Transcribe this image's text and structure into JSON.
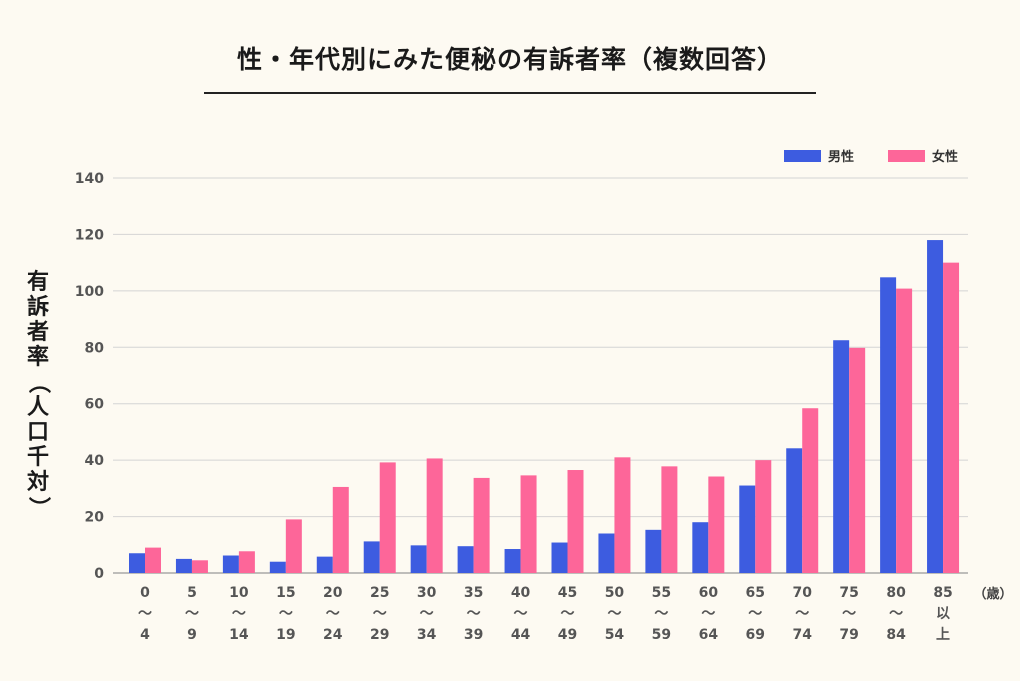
{
  "title": "性・年代別にみた便秘の有訴者率（複数回答）",
  "chart_data": {
    "type": "bar",
    "title": "性・年代別にみた便秘の有訴者率（複数回答）",
    "ylabel": "有訴者率（人口千対）",
    "xunit": "（歳）",
    "ylim": [
      0,
      140
    ],
    "yticks": [
      0,
      20,
      40,
      60,
      80,
      100,
      120,
      140
    ],
    "grid": true,
    "legend_position": "top-right",
    "categories": [
      [
        "0",
        "〜",
        "4"
      ],
      [
        "5",
        "〜",
        "9"
      ],
      [
        "10",
        "〜",
        "14"
      ],
      [
        "15",
        "〜",
        "19"
      ],
      [
        "20",
        "〜",
        "24"
      ],
      [
        "25",
        "〜",
        "29"
      ],
      [
        "30",
        "〜",
        "34"
      ],
      [
        "35",
        "〜",
        "39"
      ],
      [
        "40",
        "〜",
        "44"
      ],
      [
        "45",
        "〜",
        "49"
      ],
      [
        "50",
        "〜",
        "54"
      ],
      [
        "55",
        "〜",
        "59"
      ],
      [
        "60",
        "〜",
        "64"
      ],
      [
        "65",
        "〜",
        "69"
      ],
      [
        "70",
        "〜",
        "74"
      ],
      [
        "75",
        "〜",
        "79"
      ],
      [
        "80",
        "〜",
        "84"
      ],
      [
        "85",
        "以",
        "上"
      ]
    ],
    "series": [
      {
        "name": "男性",
        "color": "#3d5ce0",
        "values": [
          7.0,
          5.0,
          6.2,
          4.0,
          5.8,
          11.2,
          9.8,
          9.5,
          8.5,
          10.8,
          14.0,
          15.3,
          18.0,
          31.0,
          44.2,
          82.5,
          104.8,
          118.0
        ]
      },
      {
        "name": "女性",
        "color": "#fd6699",
        "values": [
          9.0,
          4.5,
          7.7,
          19.0,
          30.5,
          39.2,
          40.6,
          33.7,
          34.6,
          36.5,
          41.0,
          37.8,
          34.2,
          40.0,
          58.4,
          79.8,
          100.8,
          110.0
        ]
      }
    ]
  }
}
